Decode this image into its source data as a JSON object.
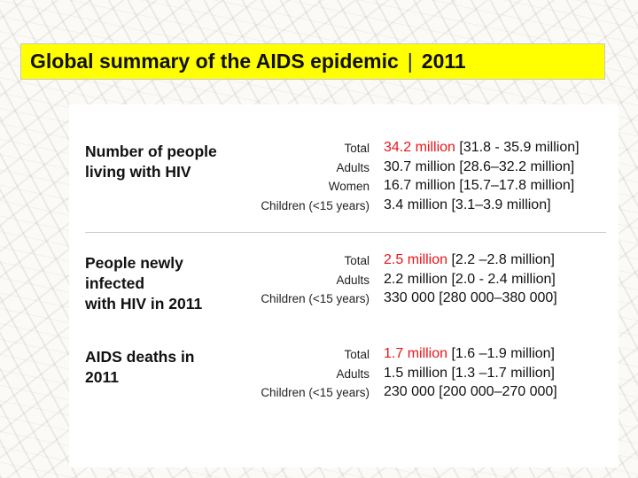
{
  "title": {
    "main": "Global summary of the AIDS epidemic",
    "separator": "|",
    "year": "2011"
  },
  "sections": [
    {
      "label_lines": [
        "Number of people",
        "living with HIV"
      ],
      "rows": [
        {
          "category": "Total",
          "highlight": "34.2 million",
          "range": "[31.8 - 35.9 million]"
        },
        {
          "category": "Adults",
          "highlight": "",
          "range": "30.7 million [28.6–32.2 million]"
        },
        {
          "category": "Women",
          "highlight": "",
          "range": "16.7 million [15.7–17.8 million]"
        },
        {
          "category": "Children (<15 years)",
          "highlight": "",
          "range": "3.4 million [3.1–3.9 million]"
        }
      ]
    },
    {
      "label_lines": [
        "People newly",
        "infected",
        "with HIV in 2011"
      ],
      "rows": [
        {
          "category": "Total",
          "highlight": "2.5 million",
          "range": "[2.2 –2.8 million]"
        },
        {
          "category": "Adults",
          "highlight": "",
          "range": "2.2 million [2.0 - 2.4 million]"
        },
        {
          "category": "Children (<15 years)",
          "highlight": "",
          "range": "330 000 [280 000–380 000]"
        }
      ]
    },
    {
      "label_lines": [
        "AIDS deaths in",
        "2011"
      ],
      "rows": [
        {
          "category": "Total",
          "highlight": "1.7 million",
          "range": "[1.6 –1.9 million]"
        },
        {
          "category": "Adults",
          "highlight": "",
          "range": "1.5 million [1.3 –1.7 million]"
        },
        {
          "category": "Children (<15 years)",
          "highlight": "",
          "range": "230 000 [200 000–270 000]"
        }
      ]
    }
  ],
  "colors": {
    "title_background": "#ffff00",
    "highlight": "#e8151b",
    "text": "#111111"
  }
}
